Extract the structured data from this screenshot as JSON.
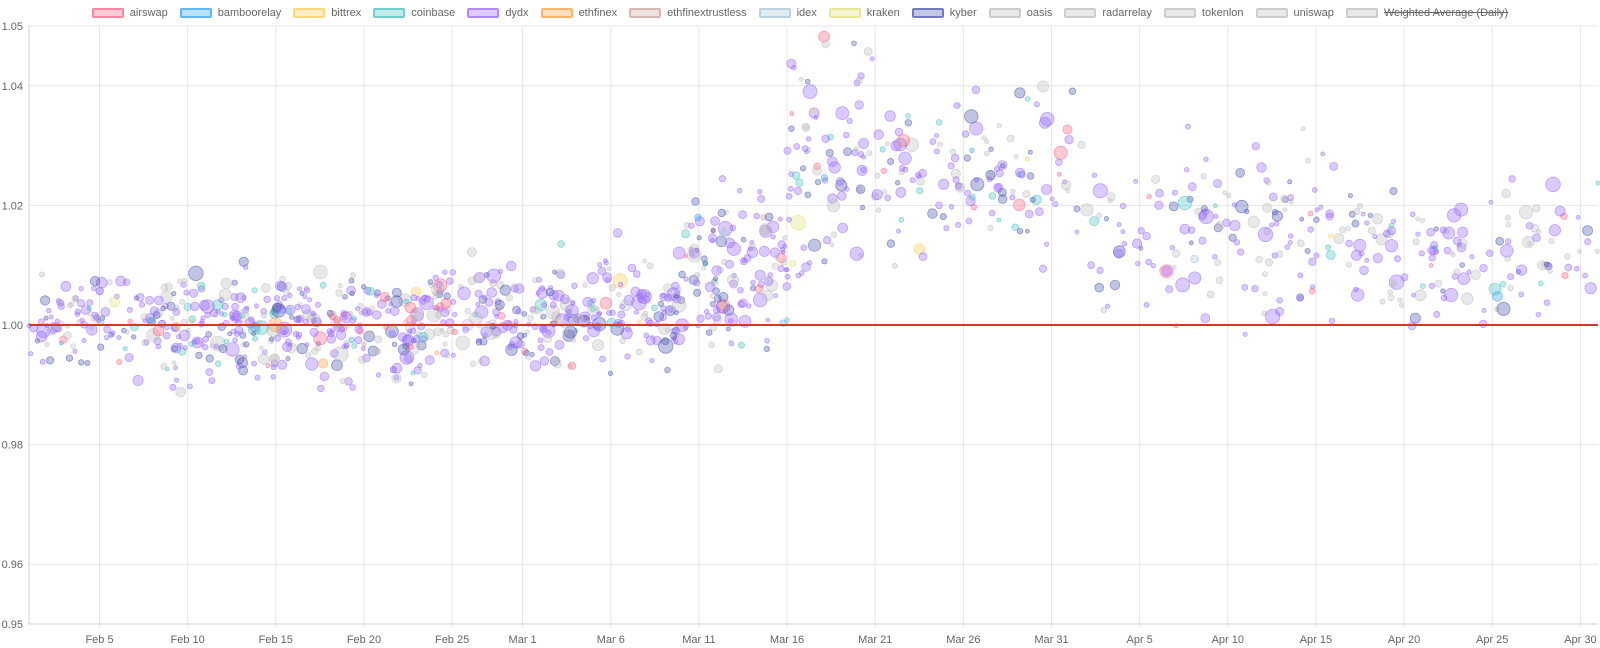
{
  "chart_data": {
    "type": "scatter",
    "title": "",
    "xlabel": "",
    "ylabel": "",
    "ylim": [
      0.95,
      1.05
    ],
    "xlim_days": [
      "Feb 1",
      "Apr 30"
    ],
    "y_ticks": [
      "0.95",
      "0.96",
      "0.98",
      "1.00",
      "1.02",
      "1.04",
      "1.05"
    ],
    "x_ticks": [
      "Feb 5",
      "Feb 10",
      "Feb 15",
      "Feb 20",
      "Feb 25",
      "Mar 1",
      "Mar 6",
      "Mar 11",
      "Mar 16",
      "Mar 21",
      "Mar 26",
      "Mar 31",
      "Apr 5",
      "Apr 10",
      "Apr 15",
      "Apr 20",
      "Apr 25",
      "Apr 30"
    ],
    "reference_line": {
      "y": 1.0,
      "color": "#e0302a"
    },
    "grid": true,
    "legend_position": "top",
    "series": [
      {
        "name": "airswap",
        "color": "#ff6384",
        "hidden": false
      },
      {
        "name": "bamboorelay",
        "color": "#36a2eb",
        "hidden": false
      },
      {
        "name": "bittrex",
        "color": "#ffcd56",
        "hidden": false
      },
      {
        "name": "coinbase",
        "color": "#4bc0c0",
        "hidden": false
      },
      {
        "name": "dydx",
        "color": "#9966ff",
        "hidden": false
      },
      {
        "name": "ethfinex",
        "color": "#ff9f40",
        "hidden": false
      },
      {
        "name": "ethfinextrustless",
        "color": "#c9a39a",
        "hidden": false
      },
      {
        "name": "idex",
        "color": "#a6c4d9",
        "hidden": false
      },
      {
        "name": "kraken",
        "color": "#e0e07a",
        "hidden": false
      },
      {
        "name": "kyber",
        "color": "#4a55b0",
        "hidden": false
      },
      {
        "name": "oasis",
        "color": "#bdbdbd",
        "hidden": false
      },
      {
        "name": "radarrelay",
        "color": "#bdbdbd",
        "hidden": false
      },
      {
        "name": "tokenlon",
        "color": "#bdbdbd",
        "hidden": false
      },
      {
        "name": "uniswap",
        "color": "#bdbdbd",
        "hidden": false
      },
      {
        "name": "Weighted Average (Daily)",
        "color": "#bdbdbd",
        "hidden": true
      }
    ],
    "clusters": [
      {
        "start_day": 0,
        "end_day": 8,
        "center": 1.0,
        "spread": 0.006,
        "density": 60
      },
      {
        "start_day": 8,
        "end_day": 23,
        "center": 1.0,
        "spread": 0.008,
        "density": 90
      },
      {
        "start_day": 23,
        "end_day": 37,
        "center": 1.002,
        "spread": 0.008,
        "density": 80
      },
      {
        "start_day": 37,
        "end_day": 43,
        "center": 1.01,
        "spread": 0.012,
        "density": 90
      },
      {
        "start_day": 43,
        "end_day": 48,
        "center": 1.028,
        "spread": 0.02,
        "density": 70
      },
      {
        "start_day": 48,
        "end_day": 60,
        "center": 1.025,
        "spread": 0.012,
        "density": 45
      },
      {
        "start_day": 60,
        "end_day": 75,
        "center": 1.015,
        "spread": 0.012,
        "density": 40
      },
      {
        "start_day": 75,
        "end_day": 89,
        "center": 1.012,
        "spread": 0.01,
        "density": 40
      }
    ]
  }
}
